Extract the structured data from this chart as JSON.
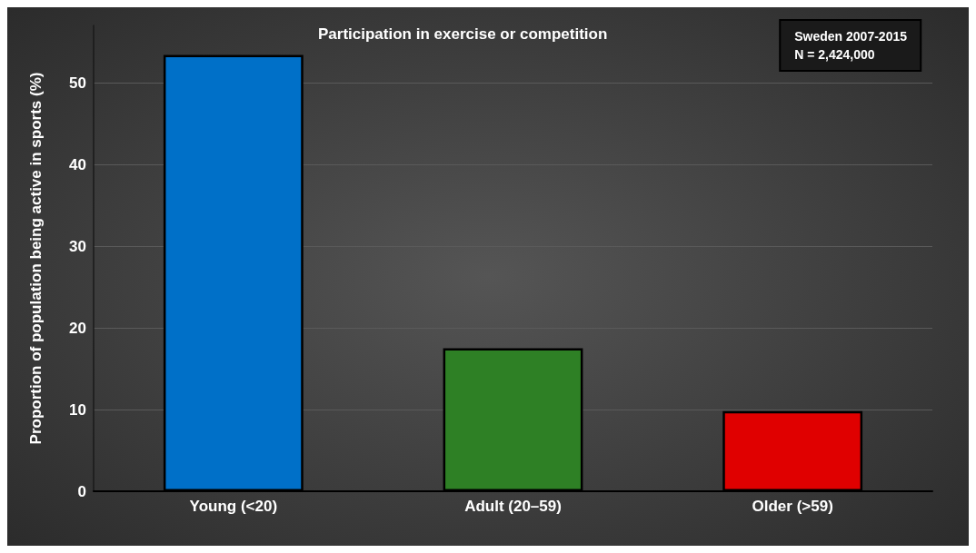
{
  "chart_data": {
    "type": "bar",
    "title": "Participation in exercise or competition",
    "ylabel": "Proportion of population being active in sports (%)",
    "categories": [
      "Young (<20)",
      "Adult (20–59)",
      "Older (>59)"
    ],
    "values": [
      53.4,
      17.5,
      9.8
    ],
    "colors": [
      "#0070c8",
      "#2e8025",
      "#e00000"
    ],
    "ylim": [
      0,
      57
    ],
    "yticks": [
      0,
      10,
      20,
      30,
      40,
      50
    ],
    "grid": "y",
    "annotations": [
      "Sweden 2007-2015\nN = 2,424,000"
    ]
  }
}
